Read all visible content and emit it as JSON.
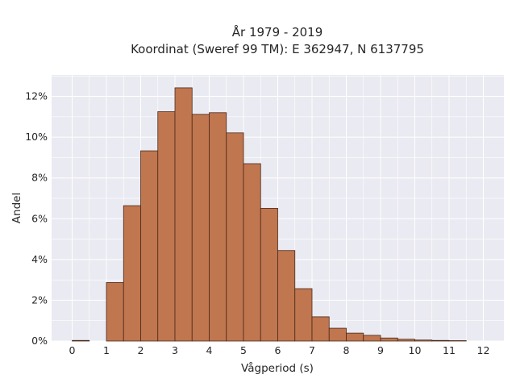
{
  "chart_data": {
    "type": "bar",
    "title": [
      "År 1979 - 2019",
      "Koordinat (Sweref 99 TM): E 362947, N 6137795"
    ],
    "xlabel": "Vågperiod (s)",
    "ylabel": "Andel",
    "bin_width": 0.5,
    "bins": [
      {
        "x0": 0.0,
        "value": 0.0003
      },
      {
        "x0": 0.5,
        "value": 0.0
      },
      {
        "x0": 1.0,
        "value": 0.0287
      },
      {
        "x0": 1.5,
        "value": 0.0664
      },
      {
        "x0": 2.0,
        "value": 0.0933
      },
      {
        "x0": 2.5,
        "value": 0.1125
      },
      {
        "x0": 3.0,
        "value": 0.1242
      },
      {
        "x0": 3.5,
        "value": 0.1112
      },
      {
        "x0": 4.0,
        "value": 0.112
      },
      {
        "x0": 4.5,
        "value": 0.1021
      },
      {
        "x0": 5.0,
        "value": 0.087
      },
      {
        "x0": 5.5,
        "value": 0.0651
      },
      {
        "x0": 6.0,
        "value": 0.0444
      },
      {
        "x0": 6.5,
        "value": 0.0257
      },
      {
        "x0": 7.0,
        "value": 0.0119
      },
      {
        "x0": 7.5,
        "value": 0.0063
      },
      {
        "x0": 8.0,
        "value": 0.0039
      },
      {
        "x0": 8.5,
        "value": 0.0028
      },
      {
        "x0": 9.0,
        "value": 0.0015
      },
      {
        "x0": 9.5,
        "value": 0.0009
      },
      {
        "x0": 10.0,
        "value": 0.0005
      },
      {
        "x0": 10.5,
        "value": 0.0003
      },
      {
        "x0": 11.0,
        "value": 0.0002
      }
    ],
    "xticks": [
      "0",
      "1",
      "2",
      "3",
      "4",
      "5",
      "6",
      "7",
      "8",
      "9",
      "10",
      "11",
      "12"
    ],
    "yticks": [
      "0%",
      "2%",
      "4%",
      "6%",
      "8%",
      "10%",
      "12%"
    ],
    "xlim": [
      -0.6,
      12.6
    ],
    "ylim": [
      0,
      0.1305
    ],
    "grid": true,
    "colors": {
      "bar_fill": "#c0764f",
      "bar_edge": "#4a2a1a",
      "plot_background": "#eaeaf2",
      "grid": "#ffffff"
    }
  }
}
